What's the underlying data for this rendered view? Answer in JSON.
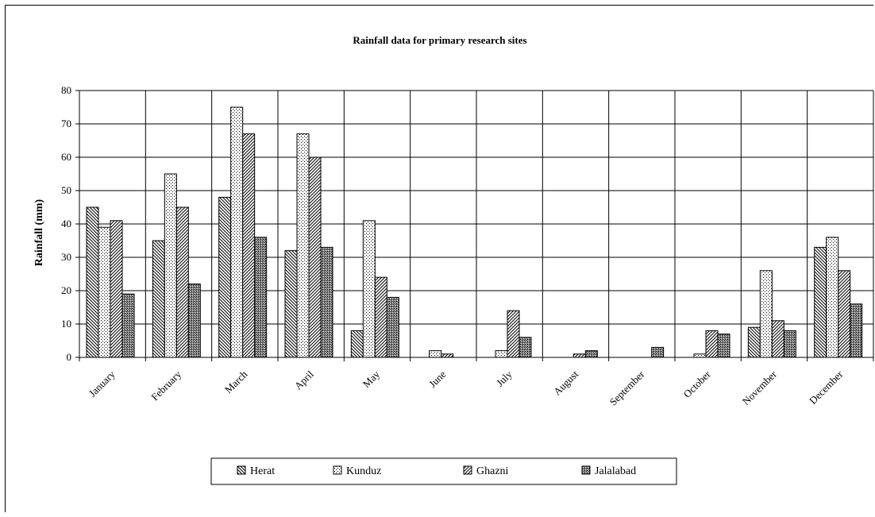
{
  "chart_data": {
    "type": "bar",
    "title": "Rainfall data for primary research sites",
    "xlabel": "",
    "ylabel": "Rainfall (mm)",
    "ylim": [
      0,
      80
    ],
    "yticks": [
      "0",
      "10",
      "20",
      "30",
      "40",
      "50",
      "60",
      "70",
      "80"
    ],
    "categories": [
      "January",
      "February",
      "March",
      "April",
      "May",
      "June",
      "July",
      "August",
      "September",
      "October",
      "November",
      "December"
    ],
    "grid": true,
    "legend_position": "bottom",
    "series": [
      {
        "name": "Herat",
        "pattern": "diagonal-back",
        "values": [
          45,
          35,
          48,
          32,
          8,
          0,
          0,
          0,
          0,
          0,
          9,
          33
        ]
      },
      {
        "name": "Kunduz",
        "pattern": "dots",
        "values": [
          39,
          55,
          75,
          67,
          41,
          2,
          2,
          0,
          0,
          1,
          26,
          36
        ]
      },
      {
        "name": "Ghazni",
        "pattern": "diagonal-fwd",
        "values": [
          41,
          45,
          67,
          60,
          24,
          1,
          14,
          1,
          0,
          8,
          11,
          26
        ]
      },
      {
        "name": "Jalalabad",
        "pattern": "dense-cross",
        "values": [
          19,
          22,
          36,
          33,
          18,
          0,
          6,
          2,
          3,
          7,
          8,
          16
        ]
      }
    ]
  }
}
